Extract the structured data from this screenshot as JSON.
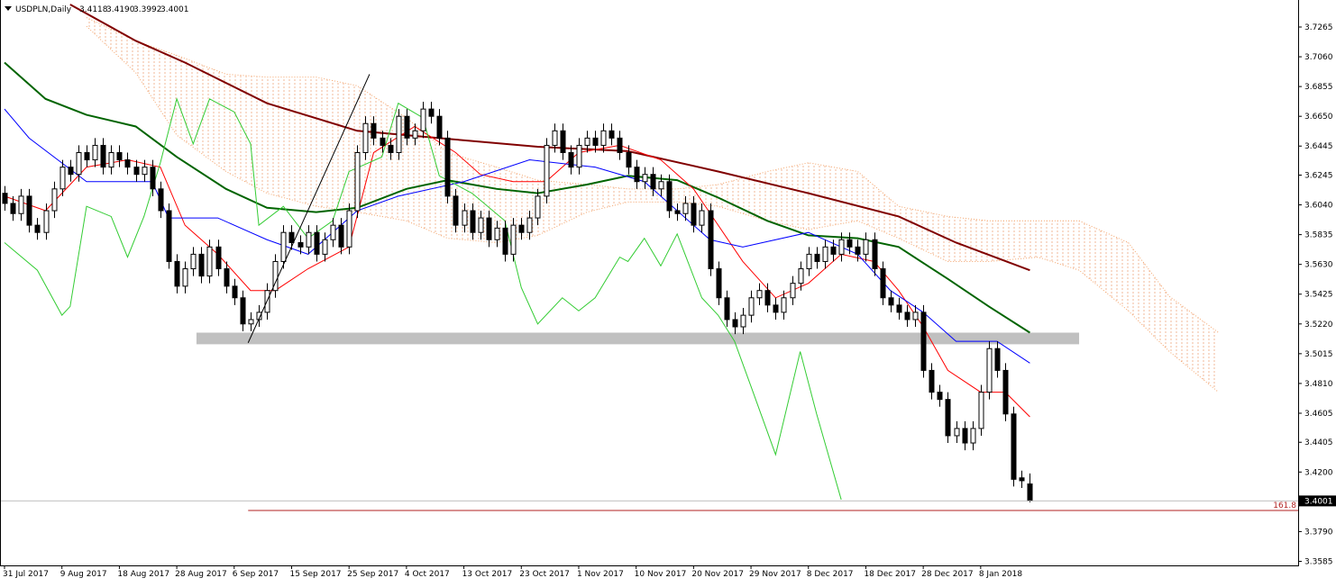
{
  "chart_data": {
    "type": "candlestick",
    "title": "USDPLN,Daily",
    "last_labels": [
      "3.4118",
      "3.4190",
      "3.3992",
      "3.4001"
    ],
    "xlim": [
      -0.55,
      157.7
    ],
    "ylim": [
      3.3557,
      3.742
    ],
    "xticks": [
      {
        "value": 0,
        "label": "31 Jul 2017"
      },
      {
        "value": 7,
        "label": "9 Aug 2017"
      },
      {
        "value": 14,
        "label": "18 Aug 2017"
      },
      {
        "value": 21,
        "label": "28 Aug 2017"
      },
      {
        "value": 28,
        "label": "6 Sep 2017"
      },
      {
        "value": 35,
        "label": "15 Sep 2017"
      },
      {
        "value": 42,
        "label": "25 Sep 2017"
      },
      {
        "value": 49,
        "label": "4 Oct 2017"
      },
      {
        "value": 56,
        "label": "13 Oct 2017"
      },
      {
        "value": 63,
        "label": "23 Oct 2017"
      },
      {
        "value": 70,
        "label": "1 Nov 2017"
      },
      {
        "value": 77,
        "label": "10 Nov 2017"
      },
      {
        "value": 84,
        "label": "20 Nov 2017"
      },
      {
        "value": 91,
        "label": "29 Nov 2017"
      },
      {
        "value": 98,
        "label": "8 Dec 2017"
      },
      {
        "value": 105,
        "label": "18 Dec 2017"
      },
      {
        "value": 112,
        "label": "28 Dec 2017"
      },
      {
        "value": 119,
        "label": "8 Jan 2018"
      }
    ],
    "yticks": [
      3.7265,
      {
        "value": 3.706,
        "label": "3.7060"
      },
      3.6855,
      {
        "value": 3.665,
        "label": "3.6650"
      },
      3.6445,
      3.6245,
      {
        "value": 3.604,
        "label": "3.6040"
      },
      3.5835,
      {
        "value": 3.563,
        "label": "3.5630"
      },
      3.5425,
      {
        "value": 3.522,
        "label": "3.5220"
      },
      3.5015,
      {
        "value": 3.481,
        "label": "3.4810"
      },
      3.4605,
      3.4405,
      {
        "value": 3.42,
        "label": "3.4200"
      },
      {
        "value": 3.379,
        "label": "3.3790"
      },
      3.3585
    ],
    "open": [
      3.612,
      3.605,
      3.598,
      3.61,
      3.59,
      3.585,
      3.6,
      3.615,
      3.63,
      3.625,
      3.64,
      3.635,
      3.645,
      3.63,
      3.64,
      3.635,
      3.63,
      3.625,
      3.63,
      3.615,
      3.6,
      3.565,
      3.548,
      3.56,
      3.57,
      3.555,
      3.575,
      3.56,
      3.548,
      3.54,
      3.522,
      3.525,
      3.53,
      3.545,
      3.565,
      3.585,
      3.578,
      3.575,
      3.585,
      3.57,
      3.58,
      3.59,
      3.575,
      3.6,
      3.64,
      3.66,
      3.65,
      3.645,
      3.64,
      3.665,
      3.65,
      3.655,
      3.67,
      3.665,
      3.65,
      3.61,
      3.59,
      3.6,
      3.585,
      3.595,
      3.58,
      3.588,
      3.57,
      3.59,
      3.585,
      3.595,
      3.61,
      3.645,
      3.655,
      3.64,
      3.63,
      3.645,
      3.65,
      3.645,
      3.655,
      3.65,
      3.64,
      3.63,
      3.62,
      3.625,
      3.615,
      3.62,
      3.6,
      3.598,
      3.605,
      3.59,
      3.6,
      3.56,
      3.54,
      3.525,
      3.52,
      3.528,
      3.54,
      3.545,
      3.535,
      3.53,
      3.54,
      3.55,
      3.56,
      3.57,
      3.565,
      3.575,
      3.57,
      3.58,
      3.575,
      3.57,
      3.58,
      3.56,
      3.54,
      3.535,
      3.53,
      3.525,
      3.53,
      3.49,
      3.475,
      3.47,
      3.445,
      3.45,
      3.44,
      3.45,
      3.475,
      3.505,
      3.49,
      3.46,
      3.416,
      3.4118
    ],
    "high": [
      3.617,
      3.61,
      3.615,
      3.615,
      3.595,
      3.605,
      3.62,
      3.635,
      3.635,
      3.645,
      3.645,
      3.65,
      3.65,
      3.645,
      3.645,
      3.64,
      3.635,
      3.635,
      3.635,
      3.62,
      3.605,
      3.57,
      3.565,
      3.575,
      3.575,
      3.58,
      3.58,
      3.565,
      3.553,
      3.545,
      3.53,
      3.535,
      3.55,
      3.57,
      3.59,
      3.59,
      3.583,
      3.59,
      3.59,
      3.585,
      3.595,
      3.595,
      3.605,
      3.645,
      3.665,
      3.665,
      3.655,
      3.65,
      3.67,
      3.67,
      3.66,
      3.675,
      3.675,
      3.67,
      3.655,
      3.615,
      3.605,
      3.605,
      3.6,
      3.6,
      3.593,
      3.593,
      3.595,
      3.595,
      3.6,
      3.615,
      3.65,
      3.66,
      3.66,
      3.645,
      3.65,
      3.655,
      3.655,
      3.66,
      3.66,
      3.655,
      3.645,
      3.635,
      3.63,
      3.63,
      3.625,
      3.625,
      3.605,
      3.61,
      3.61,
      3.605,
      3.605,
      3.565,
      3.545,
      3.53,
      3.533,
      3.545,
      3.55,
      3.55,
      3.54,
      3.545,
      3.555,
      3.565,
      3.575,
      3.575,
      3.58,
      3.58,
      3.585,
      3.585,
      3.58,
      3.585,
      3.585,
      3.565,
      3.545,
      3.54,
      3.535,
      3.535,
      3.535,
      3.495,
      3.48,
      3.475,
      3.455,
      3.455,
      3.455,
      3.48,
      3.51,
      3.51,
      3.495,
      3.465,
      3.421,
      3.419
    ],
    "low": [
      3.6,
      3.593,
      3.593,
      3.585,
      3.58,
      3.58,
      3.595,
      3.61,
      3.62,
      3.62,
      3.63,
      3.63,
      3.625,
      3.625,
      3.63,
      3.625,
      3.62,
      3.62,
      3.61,
      3.595,
      3.56,
      3.543,
      3.543,
      3.555,
      3.55,
      3.55,
      3.555,
      3.543,
      3.535,
      3.517,
      3.517,
      3.52,
      3.525,
      3.54,
      3.56,
      3.573,
      3.57,
      3.57,
      3.565,
      3.565,
      3.575,
      3.57,
      3.57,
      3.595,
      3.635,
      3.645,
      3.64,
      3.635,
      3.635,
      3.645,
      3.645,
      3.65,
      3.66,
      3.645,
      3.605,
      3.585,
      3.585,
      3.58,
      3.58,
      3.575,
      3.575,
      3.565,
      3.565,
      3.58,
      3.58,
      3.59,
      3.605,
      3.64,
      3.635,
      3.625,
      3.625,
      3.64,
      3.64,
      3.64,
      3.645,
      3.635,
      3.625,
      3.615,
      3.615,
      3.61,
      3.61,
      3.595,
      3.593,
      3.593,
      3.585,
      3.585,
      3.555,
      3.535,
      3.52,
      3.515,
      3.515,
      3.523,
      3.535,
      3.53,
      3.525,
      3.525,
      3.535,
      3.545,
      3.555,
      3.56,
      3.56,
      3.565,
      3.565,
      3.57,
      3.565,
      3.565,
      3.555,
      3.535,
      3.53,
      3.525,
      3.52,
      3.52,
      3.485,
      3.47,
      3.465,
      3.44,
      3.44,
      3.435,
      3.435,
      3.445,
      3.47,
      3.485,
      3.455,
      3.41,
      3.409,
      3.3992
    ],
    "close": [
      3.605,
      3.598,
      3.61,
      3.59,
      3.585,
      3.6,
      3.615,
      3.63,
      3.625,
      3.64,
      3.635,
      3.645,
      3.63,
      3.64,
      3.635,
      3.63,
      3.625,
      3.63,
      3.615,
      3.6,
      3.565,
      3.548,
      3.56,
      3.57,
      3.555,
      3.575,
      3.56,
      3.548,
      3.54,
      3.522,
      3.525,
      3.53,
      3.545,
      3.565,
      3.585,
      3.578,
      3.575,
      3.585,
      3.57,
      3.58,
      3.59,
      3.575,
      3.6,
      3.64,
      3.66,
      3.65,
      3.645,
      3.64,
      3.665,
      3.65,
      3.655,
      3.67,
      3.665,
      3.65,
      3.61,
      3.59,
      3.6,
      3.585,
      3.595,
      3.58,
      3.588,
      3.57,
      3.59,
      3.585,
      3.595,
      3.61,
      3.645,
      3.655,
      3.64,
      3.63,
      3.645,
      3.65,
      3.645,
      3.655,
      3.65,
      3.64,
      3.63,
      3.62,
      3.625,
      3.615,
      3.62,
      3.6,
      3.598,
      3.605,
      3.59,
      3.6,
      3.56,
      3.54,
      3.525,
      3.52,
      3.528,
      3.54,
      3.545,
      3.535,
      3.53,
      3.54,
      3.55,
      3.56,
      3.57,
      3.565,
      3.575,
      3.57,
      3.58,
      3.575,
      3.57,
      3.58,
      3.56,
      3.54,
      3.535,
      3.53,
      3.525,
      3.53,
      3.49,
      3.475,
      3.47,
      3.445,
      3.45,
      3.44,
      3.45,
      3.475,
      3.505,
      3.49,
      3.46,
      3.415,
      3.414,
      3.4001
    ],
    "cloud": {
      "color": "#f4a46a",
      "x": [
        10,
        16,
        21,
        27,
        32,
        38,
        43,
        49,
        54,
        60,
        65,
        71,
        76,
        82,
        87,
        93,
        98,
        104,
        109,
        115,
        120,
        126,
        131,
        137,
        142,
        148
      ],
      "upper": [
        3.733,
        3.717,
        3.707,
        3.694,
        3.692,
        3.692,
        3.686,
        3.664,
        3.64,
        3.63,
        3.621,
        3.618,
        3.615,
        3.615,
        3.618,
        3.627,
        3.633,
        3.627,
        3.603,
        3.596,
        3.593,
        3.593,
        3.593,
        3.578,
        3.541,
        3.516
      ],
      "lower": [
        3.727,
        3.695,
        3.652,
        3.627,
        3.612,
        3.603,
        3.599,
        3.593,
        3.581,
        3.578,
        3.583,
        3.599,
        3.606,
        3.606,
        3.603,
        3.593,
        3.587,
        3.593,
        3.581,
        3.565,
        3.565,
        3.568,
        3.559,
        3.531,
        3.503,
        3.475
      ]
    },
    "lines": [
      {
        "color": "#800000",
        "width": 2,
        "x": [
          8,
          16,
          22,
          32,
          43,
          55,
          65,
          76,
          87,
          98,
          109,
          116,
          125
        ],
        "values": [
          3.742,
          3.717,
          3.702,
          3.674,
          3.655,
          3.649,
          3.644,
          3.641,
          3.627,
          3.612,
          3.596,
          3.578,
          3.559
        ]
      },
      {
        "color": "#006400",
        "width": 2,
        "x": [
          0,
          5,
          10,
          16,
          21,
          27,
          32,
          38,
          43,
          49,
          54,
          60,
          65,
          71,
          76,
          82,
          87,
          93,
          98,
          104,
          109,
          115,
          120,
          125
        ],
        "values": [
          3.702,
          3.677,
          3.666,
          3.658,
          3.637,
          3.615,
          3.602,
          3.599,
          3.602,
          3.615,
          3.621,
          3.615,
          3.612,
          3.618,
          3.624,
          3.621,
          3.609,
          3.593,
          3.583,
          3.581,
          3.575,
          3.553,
          3.534,
          3.516
        ]
      },
      {
        "color": "#ff0000",
        "width": 1,
        "x": [
          0,
          5,
          10,
          15,
          19,
          22,
          26,
          30,
          33,
          37,
          42,
          45,
          50,
          55,
          58,
          62,
          66,
          70,
          75,
          80,
          84,
          87,
          90,
          94,
          98,
          102,
          106,
          109,
          112,
          115,
          119,
          122,
          125
        ],
        "values": [
          3.61,
          3.6,
          3.63,
          3.635,
          3.63,
          3.59,
          3.57,
          3.545,
          3.545,
          3.56,
          3.575,
          3.64,
          3.658,
          3.64,
          3.625,
          3.62,
          3.62,
          3.64,
          3.645,
          3.635,
          3.615,
          3.59,
          3.565,
          3.54,
          3.55,
          3.57,
          3.565,
          3.545,
          3.52,
          3.49,
          3.475,
          3.475,
          3.458
        ]
      },
      {
        "color": "#0000ff",
        "width": 1,
        "x": [
          0,
          3,
          10,
          18,
          20,
          26,
          32,
          37,
          43,
          48,
          56,
          64,
          72,
          78,
          82,
          86,
          90,
          98,
          104,
          108,
          112,
          116,
          121,
          125
        ],
        "values": [
          3.67,
          3.65,
          3.62,
          3.62,
          3.595,
          3.595,
          3.58,
          3.57,
          3.6,
          3.61,
          3.62,
          3.635,
          3.63,
          3.62,
          3.6,
          3.58,
          3.575,
          3.585,
          3.57,
          3.545,
          3.53,
          3.51,
          3.51,
          3.495
        ]
      },
      {
        "color": "#33cc33",
        "width": 1,
        "x": [
          0,
          4,
          7,
          8,
          10,
          13,
          15,
          17,
          19,
          21,
          23,
          25,
          28,
          30,
          31,
          34,
          37,
          40,
          42,
          46,
          48,
          51,
          53,
          57,
          61,
          63,
          65,
          68,
          70,
          72,
          75,
          76,
          78,
          80,
          82,
          85,
          87,
          89,
          91,
          94,
          97,
          99,
          102
        ],
        "values": [
          3.578,
          3.559,
          3.528,
          3.534,
          3.603,
          3.596,
          3.568,
          3.596,
          3.633,
          3.677,
          3.646,
          3.677,
          3.668,
          3.646,
          3.59,
          3.603,
          3.581,
          3.593,
          3.627,
          3.637,
          3.674,
          3.664,
          3.624,
          3.612,
          3.593,
          3.547,
          3.522,
          3.54,
          3.531,
          3.54,
          3.568,
          3.565,
          3.581,
          3.562,
          3.584,
          3.54,
          3.528,
          3.51,
          3.479,
          3.432,
          3.503,
          3.46,
          3.401
        ]
      }
    ],
    "zone": {
      "color": "#c0c0c0",
      "x": [
        23.4,
        131
      ],
      "values": [
        3.508,
        3.516
      ]
    },
    "fib": {
      "label": "161.8",
      "value": 3.3935,
      "color": "#b22222",
      "x": [
        29.7,
        44.5
      ],
      "values": [
        3.509,
        3.694
      ]
    }
  }
}
